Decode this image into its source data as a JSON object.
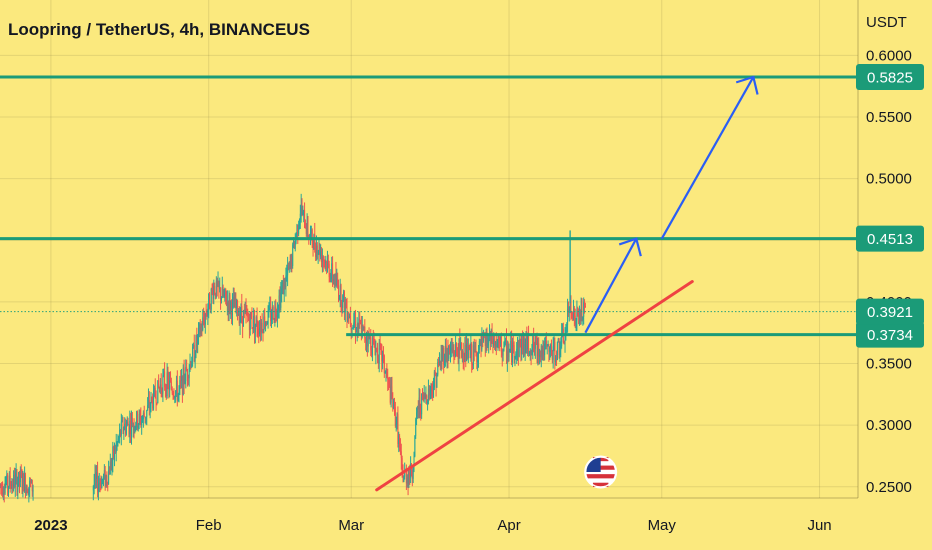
{
  "chart_data": {
    "type": "candlestick",
    "title": "Loopring / TetherUS, 4h, BINANCEUS",
    "unit": "USDT",
    "ylim": [
      0.2425,
      0.6125
    ],
    "x_range": [
      "2022-12-22",
      "2023-06-06"
    ],
    "y_ticks": [
      "0.6000",
      "0.5500",
      "0.5000",
      "0.4500",
      "0.4000",
      "0.3500",
      "0.3000",
      "0.2500"
    ],
    "x_ticks": [
      {
        "label": "2023",
        "date": "2023-01-01",
        "bold": true
      },
      {
        "label": "Feb",
        "date": "2023-02-01",
        "bold": false
      },
      {
        "label": "Mar",
        "date": "2023-03-01",
        "bold": false
      },
      {
        "label": "Apr",
        "date": "2023-04-01",
        "bold": false
      },
      {
        "label": "May",
        "date": "2023-05-01",
        "bold": false
      },
      {
        "label": "Jun",
        "date": "2023-06-01",
        "bold": false
      }
    ],
    "grid": true,
    "current_price": 0.3921,
    "price_path": [
      {
        "date": "2022-12-22",
        "price": 0.251
      },
      {
        "date": "2022-12-26",
        "price": 0.255
      },
      {
        "date": "2022-12-29",
        "price": 0.248
      },
      {
        "date": "2023-01-07",
        "price": 0.246
      },
      {
        "date": "2023-01-12",
        "price": 0.258
      },
      {
        "date": "2023-01-15",
        "price": 0.298
      },
      {
        "date": "2023-01-19",
        "price": 0.305
      },
      {
        "date": "2023-01-23",
        "price": 0.336
      },
      {
        "date": "2023-01-26",
        "price": 0.326
      },
      {
        "date": "2023-01-29",
        "price": 0.358
      },
      {
        "date": "2023-02-02",
        "price": 0.412
      },
      {
        "date": "2023-02-05",
        "price": 0.399
      },
      {
        "date": "2023-02-08",
        "price": 0.388
      },
      {
        "date": "2023-02-11",
        "price": 0.381
      },
      {
        "date": "2023-02-14",
        "price": 0.393
      },
      {
        "date": "2023-02-17",
        "price": 0.428
      },
      {
        "date": "2023-02-19",
        "price": 0.475
      },
      {
        "date": "2023-02-21",
        "price": 0.452
      },
      {
        "date": "2023-02-23",
        "price": 0.441
      },
      {
        "date": "2023-02-26",
        "price": 0.415
      },
      {
        "date": "2023-03-01",
        "price": 0.386
      },
      {
        "date": "2023-03-04",
        "price": 0.372
      },
      {
        "date": "2023-03-07",
        "price": 0.356
      },
      {
        "date": "2023-03-10",
        "price": 0.301
      },
      {
        "date": "2023-03-11",
        "price": 0.258
      },
      {
        "date": "2023-03-13",
        "price": 0.262
      },
      {
        "date": "2023-03-14",
        "price": 0.314
      },
      {
        "date": "2023-03-17",
        "price": 0.332
      },
      {
        "date": "2023-03-19",
        "price": 0.358
      },
      {
        "date": "2023-03-22",
        "price": 0.361
      },
      {
        "date": "2023-03-25",
        "price": 0.356
      },
      {
        "date": "2023-03-28",
        "price": 0.369
      },
      {
        "date": "2023-04-01",
        "price": 0.359
      },
      {
        "date": "2023-04-04",
        "price": 0.366
      },
      {
        "date": "2023-04-07",
        "price": 0.362
      },
      {
        "date": "2023-04-10",
        "price": 0.358
      },
      {
        "date": "2023-04-12",
        "price": 0.372
      },
      {
        "date": "2023-04-13",
        "price": 0.399
      },
      {
        "date": "2023-04-14",
        "price": 0.385
      },
      {
        "date": "2023-04-16",
        "price": 0.392
      }
    ],
    "spikes": [
      {
        "date": "2023-04-13",
        "high": 0.458
      }
    ],
    "horizontal_levels": [
      {
        "value": 0.5825,
        "label": "0.5825",
        "from": "2022-12-22"
      },
      {
        "value": 0.4513,
        "label": "0.4513",
        "from": "2022-12-22"
      },
      {
        "value": 0.3734,
        "label": "0.3734",
        "from": "2023-02-28"
      }
    ],
    "trendline": {
      "from": {
        "date": "2023-03-06",
        "price": 0.2475
      },
      "to": {
        "date": "2023-05-07",
        "price": 0.4165
      }
    },
    "projection_arrows": [
      {
        "from": {
          "date": "2023-04-16",
          "price": 0.375
        },
        "to": {
          "date": "2023-04-26",
          "price": 0.4513
        }
      },
      {
        "from": {
          "date": "2023-05-01",
          "price": 0.4513
        },
        "to": {
          "date": "2023-05-19",
          "price": 0.5825
        }
      }
    ],
    "event_marker": {
      "date": "2023-04-19",
      "icon": "us-flag-icon"
    },
    "colors": {
      "background": "#fbe97e",
      "level": "#1b9b78",
      "trendline": "#ef4242",
      "arrow": "#2a5ef5",
      "candle_up": "#26a69a",
      "candle_down": "#ef5350",
      "price_line": "#2aa27c"
    }
  }
}
